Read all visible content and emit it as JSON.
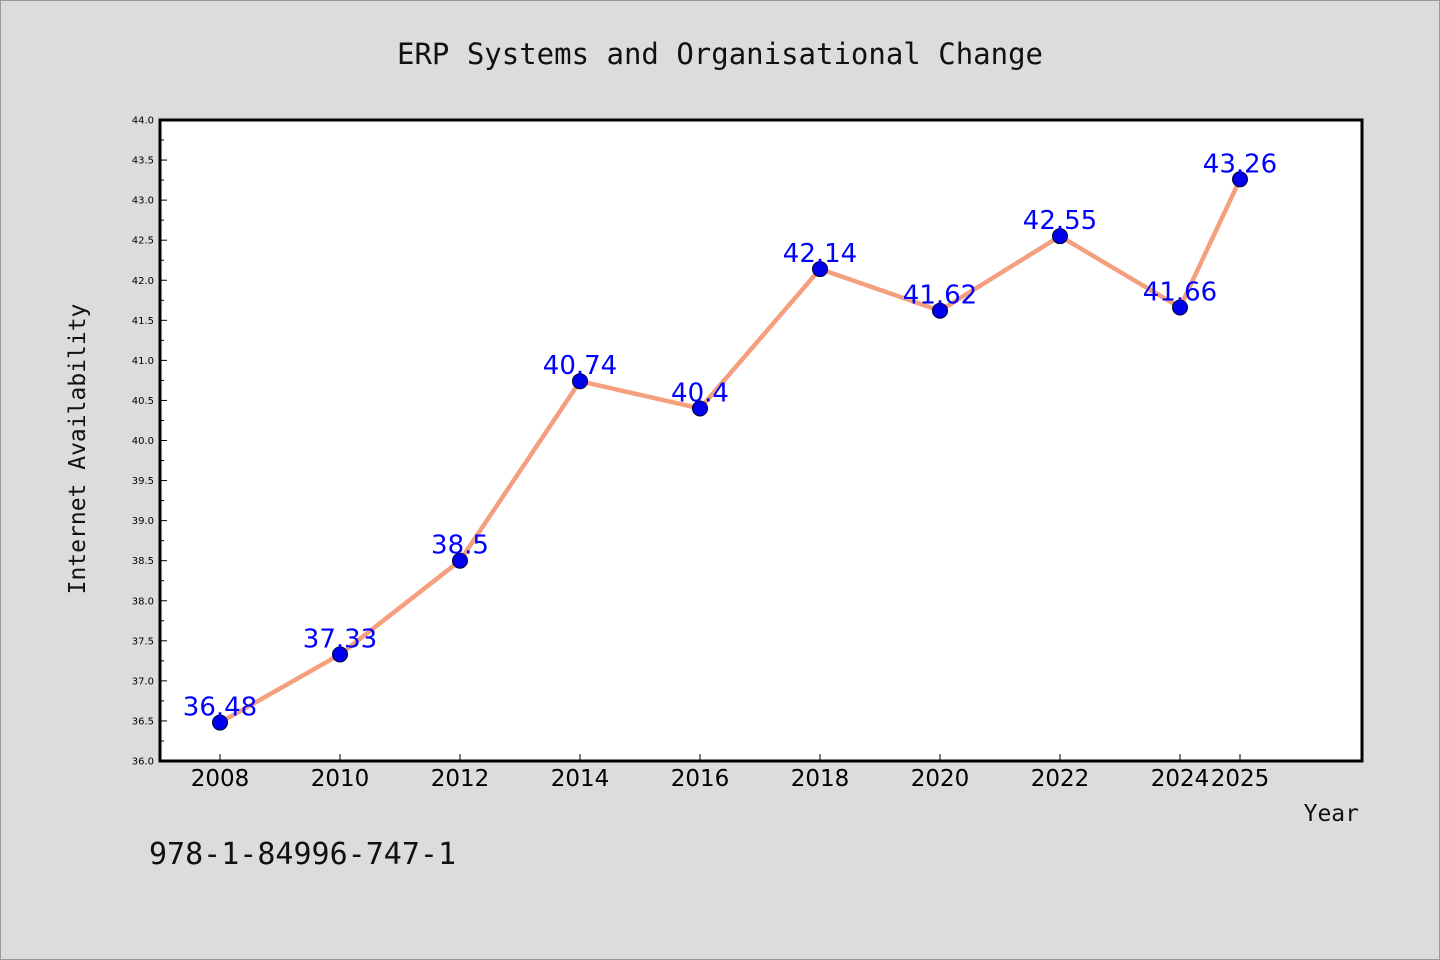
{
  "chart_data": {
    "type": "line",
    "title": "ERP Systems and Organisational Change",
    "xlabel": "Year",
    "ylabel": "Internet Availability",
    "categories": [
      "2008",
      "2010",
      "2012",
      "2014",
      "2016",
      "2018",
      "2020",
      "2022",
      "2024",
      "2025"
    ],
    "values": [
      36.48,
      37.33,
      38.5,
      40.74,
      40.4,
      42.14,
      41.62,
      42.55,
      41.66,
      43.26
    ],
    "data_labels": [
      "36.48",
      "37.33",
      "38.5",
      "40.74",
      "40.4",
      "42.14",
      "41.62",
      "42.55",
      "41.66",
      "43.26"
    ],
    "ylim": [
      36.0,
      44.0
    ],
    "yticks": [
      "36.0",
      "36.5",
      "37.0",
      "37.5",
      "38.0",
      "38.5",
      "39.0",
      "39.5",
      "40.0",
      "40.5",
      "41.0",
      "41.5",
      "42.0",
      "42.5",
      "43.0",
      "43.5",
      "44.0"
    ],
    "grid": false,
    "legend": "none",
    "colors": {
      "line": "#f4a07f",
      "marker_fill": "#0000ee",
      "marker_stroke": "#000033",
      "data_label": "#0000ff",
      "background": "#dcdcdc",
      "plot_background": "#ffffff"
    }
  },
  "footer": {
    "isbn": "978-1-84996-747-1"
  }
}
